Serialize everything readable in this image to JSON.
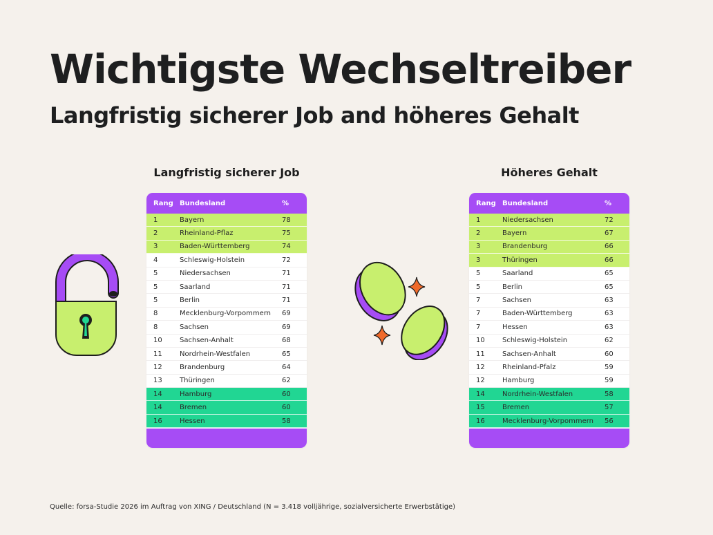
{
  "title": "Wichtigste Wechseltreiber",
  "subtitle": "Langfristig sicherer Job and höheres Gehalt",
  "source": "Quelle: forsa-Studie 2026 im Auftrag von XING / Deutschland (N = 3.418 volljährige, sozialversicherte Erwerbstätige)",
  "colors": {
    "background": "#f5f1ec",
    "header_purple": "#a64cf5",
    "top_rows_lime": "#c8ef6e",
    "bottom_rows_green": "#21d693",
    "accent_orange": "#f06a2b"
  },
  "icons": [
    "open-padlock-icon",
    "coins-icon",
    "sparkle-icon"
  ],
  "chart_data": [
    {
      "type": "table",
      "title": "Langfristig sicherer Job",
      "columns": [
        "Rang",
        "Bundesland",
        "%"
      ],
      "rows": [
        {
          "rank": "1",
          "state": "Bayern",
          "value": 78,
          "group": "top"
        },
        {
          "rank": "2",
          "state": "Rheinland-Pflaz",
          "value": 75,
          "group": "top"
        },
        {
          "rank": "3",
          "state": "Baden-Württemberg",
          "value": 74,
          "group": "top"
        },
        {
          "rank": "4",
          "state": "Schleswig-Holstein",
          "value": 72,
          "group": "mid"
        },
        {
          "rank": "5",
          "state": "Niedersachsen",
          "value": 71,
          "group": "mid"
        },
        {
          "rank": "5",
          "state": "Saarland",
          "value": 71,
          "group": "mid"
        },
        {
          "rank": "5",
          "state": "Berlin",
          "value": 71,
          "group": "mid"
        },
        {
          "rank": "8",
          "state": "Mecklenburg-Vorpommern",
          "value": 69,
          "group": "mid"
        },
        {
          "rank": "8",
          "state": "Sachsen",
          "value": 69,
          "group": "mid"
        },
        {
          "rank": "10",
          "state": "Sachsen-Anhalt",
          "value": 68,
          "group": "mid"
        },
        {
          "rank": "11",
          "state": "Nordrhein-Westfalen",
          "value": 65,
          "group": "mid"
        },
        {
          "rank": "12",
          "state": "Brandenburg",
          "value": 64,
          "group": "mid"
        },
        {
          "rank": "13",
          "state": "Thüringen",
          "value": 62,
          "group": "mid"
        },
        {
          "rank": "14",
          "state": "Hamburg",
          "value": 60,
          "group": "bottom"
        },
        {
          "rank": "14",
          "state": "Bremen",
          "value": 60,
          "group": "bottom"
        },
        {
          "rank": "16",
          "state": "Hessen",
          "value": 58,
          "group": "bottom"
        }
      ]
    },
    {
      "type": "table",
      "title": "Höheres Gehalt",
      "columns": [
        "Rang",
        "Bundesland",
        "%"
      ],
      "rows": [
        {
          "rank": "1",
          "state": "Niedersachsen",
          "value": 72,
          "group": "top"
        },
        {
          "rank": "2",
          "state": "Bayern",
          "value": 67,
          "group": "top"
        },
        {
          "rank": "3",
          "state": "Brandenburg",
          "value": 66,
          "group": "top"
        },
        {
          "rank": "3",
          "state": "Thüringen",
          "value": 66,
          "group": "top"
        },
        {
          "rank": "5",
          "state": "Saarland",
          "value": 65,
          "group": "mid"
        },
        {
          "rank": "5",
          "state": "Berlin",
          "value": 65,
          "group": "mid"
        },
        {
          "rank": "7",
          "state": "Sachsen",
          "value": 63,
          "group": "mid"
        },
        {
          "rank": "7",
          "state": "Baden-Württemberg",
          "value": 63,
          "group": "mid"
        },
        {
          "rank": "7",
          "state": "Hessen",
          "value": 63,
          "group": "mid"
        },
        {
          "rank": "10",
          "state": "Schleswig-Holstein",
          "value": 62,
          "group": "mid"
        },
        {
          "rank": "11",
          "state": "Sachsen-Anhalt",
          "value": 60,
          "group": "mid"
        },
        {
          "rank": "12",
          "state": "Rheinland-Pfalz",
          "value": 59,
          "group": "mid"
        },
        {
          "rank": "12",
          "state": "Hamburg",
          "value": 59,
          "group": "mid"
        },
        {
          "rank": "14",
          "state": "Nordrhein-Westfalen",
          "value": 58,
          "group": "bottom"
        },
        {
          "rank": "15",
          "state": "Bremen",
          "value": 57,
          "group": "bottom"
        },
        {
          "rank": "16",
          "state": "Mecklenburg-Vorpommern",
          "value": 56,
          "group": "bottom"
        }
      ]
    }
  ]
}
